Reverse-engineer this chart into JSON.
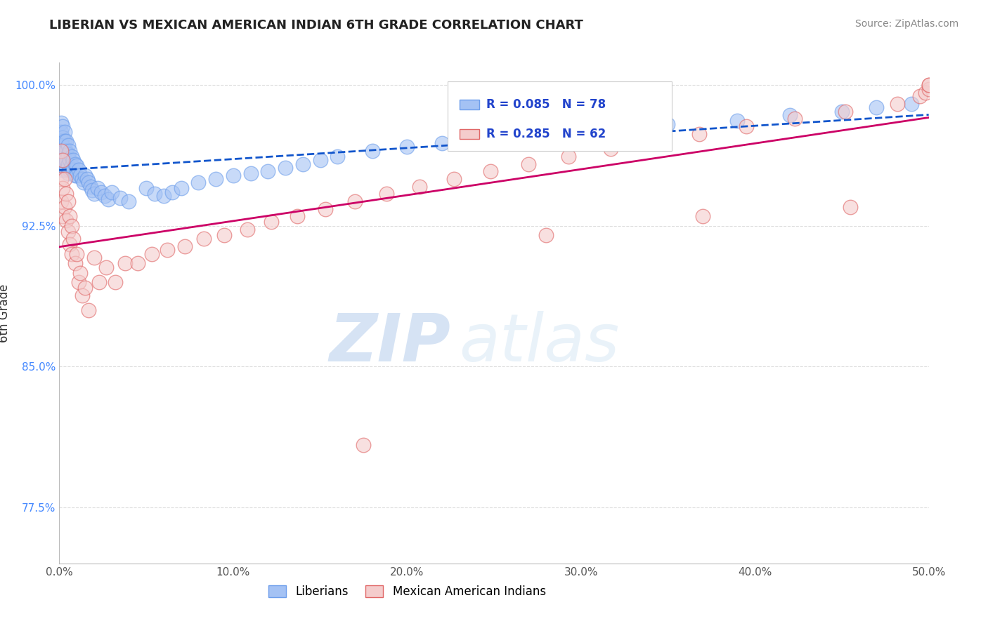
{
  "title": "LIBERIAN VS MEXICAN AMERICAN INDIAN 6TH GRADE CORRELATION CHART",
  "source_text": "Source: ZipAtlas.com",
  "ylabel": "6th Grade",
  "xlim": [
    0.0,
    0.5
  ],
  "ylim": [
    0.745,
    1.012
  ],
  "xticks": [
    0.0,
    0.1,
    0.2,
    0.3,
    0.4,
    0.5
  ],
  "xticklabels": [
    "0.0%",
    "10.0%",
    "20.0%",
    "30.0%",
    "40.0%",
    "50.0%"
  ],
  "yticks": [
    0.775,
    0.85,
    0.925,
    1.0
  ],
  "yticklabels": [
    "77.5%",
    "85.0%",
    "92.5%",
    "100.0%"
  ],
  "grid_color": "#dddddd",
  "background_color": "#ffffff",
  "liberian_color": "#a4c2f4",
  "mexican_color": "#f4cccc",
  "liberian_edge_color": "#6d9eeb",
  "mexican_edge_color": "#e06666",
  "liberian_line_color": "#1155cc",
  "mexican_line_color": "#cc0066",
  "R_liberian": 0.085,
  "N_liberian": 78,
  "R_mexican": 0.285,
  "N_mexican": 62,
  "legend_labels": [
    "Liberians",
    "Mexican American Indians"
  ],
  "watermark_zip": "ZIP",
  "watermark_atlas": "atlas",
  "liberian_x": [
    0.001,
    0.001,
    0.001,
    0.001,
    0.001,
    0.002,
    0.002,
    0.002,
    0.002,
    0.002,
    0.002,
    0.003,
    0.003,
    0.003,
    0.003,
    0.003,
    0.004,
    0.004,
    0.004,
    0.004,
    0.005,
    0.005,
    0.005,
    0.005,
    0.006,
    0.006,
    0.006,
    0.007,
    0.007,
    0.008,
    0.008,
    0.009,
    0.009,
    0.01,
    0.01,
    0.011,
    0.012,
    0.013,
    0.014,
    0.015,
    0.016,
    0.017,
    0.018,
    0.019,
    0.02,
    0.022,
    0.024,
    0.026,
    0.028,
    0.03,
    0.035,
    0.04,
    0.05,
    0.055,
    0.06,
    0.065,
    0.07,
    0.08,
    0.09,
    0.1,
    0.11,
    0.12,
    0.13,
    0.14,
    0.15,
    0.16,
    0.18,
    0.2,
    0.22,
    0.25,
    0.28,
    0.31,
    0.35,
    0.39,
    0.42,
    0.45,
    0.47,
    0.49
  ],
  "liberian_y": [
    0.98,
    0.975,
    0.97,
    0.965,
    0.96,
    0.978,
    0.972,
    0.968,
    0.963,
    0.958,
    0.955,
    0.975,
    0.97,
    0.965,
    0.96,
    0.958,
    0.97,
    0.965,
    0.96,
    0.955,
    0.968,
    0.963,
    0.958,
    0.953,
    0.965,
    0.96,
    0.955,
    0.962,
    0.957,
    0.96,
    0.955,
    0.958,
    0.952,
    0.957,
    0.952,
    0.955,
    0.952,
    0.95,
    0.948,
    0.952,
    0.95,
    0.948,
    0.946,
    0.944,
    0.942,
    0.945,
    0.943,
    0.941,
    0.939,
    0.943,
    0.94,
    0.938,
    0.945,
    0.942,
    0.941,
    0.943,
    0.945,
    0.948,
    0.95,
    0.952,
    0.953,
    0.954,
    0.956,
    0.958,
    0.96,
    0.962,
    0.965,
    0.967,
    0.969,
    0.972,
    0.974,
    0.976,
    0.979,
    0.981,
    0.984,
    0.986,
    0.988,
    0.99
  ],
  "mexican_x": [
    0.001,
    0.001,
    0.001,
    0.002,
    0.002,
    0.002,
    0.003,
    0.003,
    0.004,
    0.004,
    0.005,
    0.005,
    0.006,
    0.006,
    0.007,
    0.007,
    0.008,
    0.009,
    0.01,
    0.011,
    0.012,
    0.013,
    0.015,
    0.017,
    0.02,
    0.023,
    0.027,
    0.032,
    0.038,
    0.045,
    0.053,
    0.062,
    0.072,
    0.083,
    0.095,
    0.108,
    0.122,
    0.137,
    0.153,
    0.17,
    0.188,
    0.207,
    0.227,
    0.248,
    0.27,
    0.293,
    0.317,
    0.342,
    0.368,
    0.395,
    0.423,
    0.452,
    0.482,
    0.495,
    0.498,
    0.5,
    0.5,
    0.5,
    0.455,
    0.37,
    0.28,
    0.175
  ],
  "mexican_y": [
    0.965,
    0.95,
    0.938,
    0.96,
    0.945,
    0.93,
    0.95,
    0.935,
    0.942,
    0.928,
    0.938,
    0.922,
    0.93,
    0.915,
    0.925,
    0.91,
    0.918,
    0.905,
    0.91,
    0.895,
    0.9,
    0.888,
    0.892,
    0.88,
    0.908,
    0.895,
    0.903,
    0.895,
    0.905,
    0.905,
    0.91,
    0.912,
    0.914,
    0.918,
    0.92,
    0.923,
    0.927,
    0.93,
    0.934,
    0.938,
    0.942,
    0.946,
    0.95,
    0.954,
    0.958,
    0.962,
    0.966,
    0.97,
    0.974,
    0.978,
    0.982,
    0.986,
    0.99,
    0.994,
    0.996,
    0.998,
    1.0,
    1.0,
    0.935,
    0.93,
    0.92,
    0.808
  ]
}
